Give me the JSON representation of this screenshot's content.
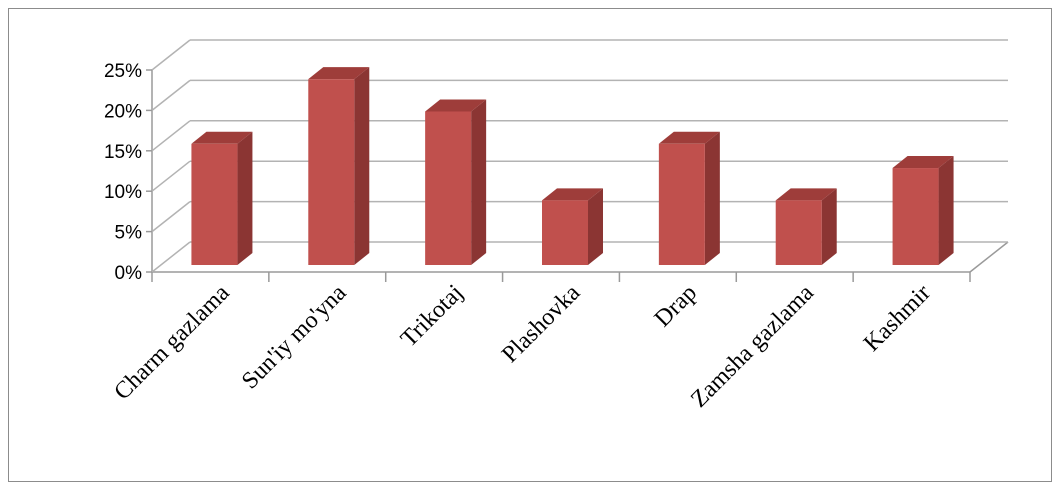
{
  "chart_data": {
    "type": "bar",
    "style": "3d-column",
    "categories": [
      "Charm gazlama",
      "Sun'iy mo'yna",
      "Trikotaj",
      "Plashovka",
      "Drap",
      "Zamsha gazlama",
      "Kashmir"
    ],
    "values": [
      15,
      23,
      19,
      8,
      15,
      8,
      12
    ],
    "y_ticks": [
      "0%",
      "5%",
      "10%",
      "15%",
      "20%",
      "25%"
    ],
    "ylim": [
      0,
      25
    ],
    "grid": true,
    "legend": "none",
    "colors": {
      "bar_front": "#c0504d",
      "bar_side": "#8b3533",
      "bar_top": "#9e3d3a",
      "grid": "#b3b3b3",
      "wall": "#9a9a9a"
    }
  }
}
